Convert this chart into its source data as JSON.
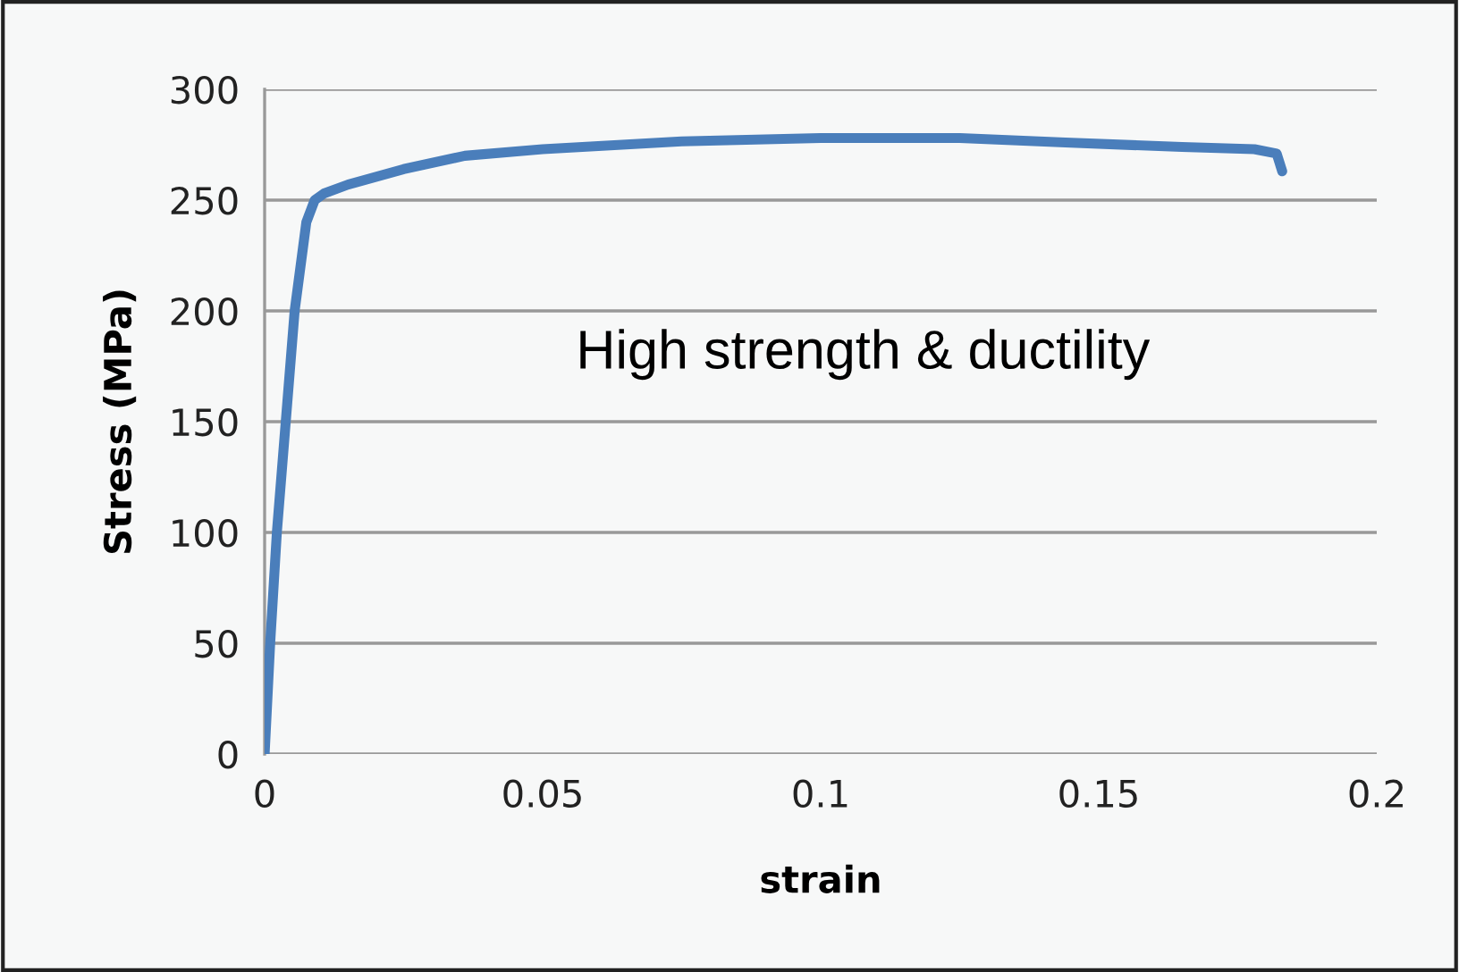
{
  "chart_data": {
    "type": "line",
    "xlabel": "strain",
    "ylabel": "Stress (MPa)",
    "annotations": [
      "High strength & ductility"
    ],
    "series": [
      {
        "color": "#4a7ebb",
        "x": [
          0,
          0.001,
          0.0022,
          0.0038,
          0.0054,
          0.0075,
          0.009,
          0.0107,
          0.015,
          0.025,
          0.036,
          0.05,
          0.075,
          0.1,
          0.125,
          0.144,
          0.165,
          0.178,
          0.182,
          0.183
        ],
        "values": [
          0,
          50,
          100,
          150,
          200,
          240,
          250,
          253,
          257,
          264,
          270,
          273,
          276.5,
          278,
          278,
          276,
          274,
          273,
          271,
          263
        ]
      }
    ],
    "xlim": [
      0,
      0.2
    ],
    "xticks": [
      0,
      0.05,
      0.1,
      0.15,
      0.2
    ],
    "ylim": [
      0,
      300
    ],
    "yticks": [
      0,
      50,
      100,
      150,
      200,
      250,
      300
    ],
    "grid": "y",
    "marker": "none",
    "line_style": "solid",
    "legend": false
  }
}
